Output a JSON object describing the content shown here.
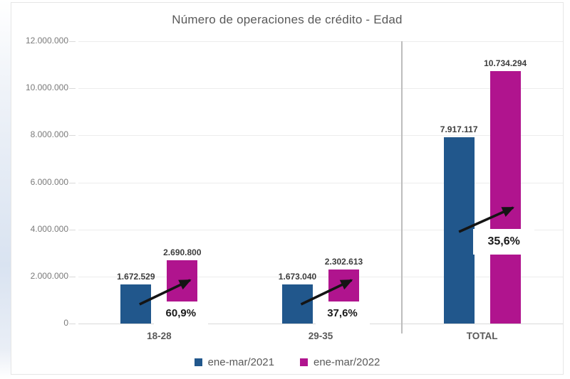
{
  "chart_data": {
    "type": "bar",
    "title": "Número de operaciones de  crédito - Edad",
    "categories": [
      "18-28",
      "29-35",
      "TOTAL"
    ],
    "series": [
      {
        "name": "ene-mar/2021",
        "color": "#21578C",
        "values": [
          1672529,
          1673040,
          7917117
        ],
        "value_labels": [
          "1.672.529",
          "1.673.040",
          "7.917.117"
        ]
      },
      {
        "name": "ene-mar/2022",
        "color": "#B0148E",
        "values": [
          2690800,
          2302613,
          10734294
        ],
        "value_labels": [
          "2.690.800",
          "2.302.613",
          "10.734.294"
        ]
      }
    ],
    "growth_annotations": [
      {
        "category": "18-28",
        "label": "60,9%",
        "raised": false
      },
      {
        "category": "29-35",
        "label": "37,6%",
        "raised": false
      },
      {
        "category": "TOTAL",
        "label": "35,6%",
        "raised": true
      }
    ],
    "y_axis": {
      "min": 0,
      "max": 12000000,
      "step": 2000000,
      "tick_labels": [
        "0",
        "2.000.000",
        "4.000.000",
        "6.000.000",
        "8.000.000",
        "10.000.000",
        "12.000.000"
      ]
    },
    "separator_after_category": "29-35",
    "grid": true,
    "legend_position": "bottom",
    "colors": {
      "grid": "#ececec",
      "axis_text": "#7a7a7a",
      "title_text": "#595959",
      "value_text": "#3d3d3d",
      "annotation_text": "#1a1a1a",
      "arrow": "#141414",
      "separator": "#bdbdbd"
    }
  }
}
